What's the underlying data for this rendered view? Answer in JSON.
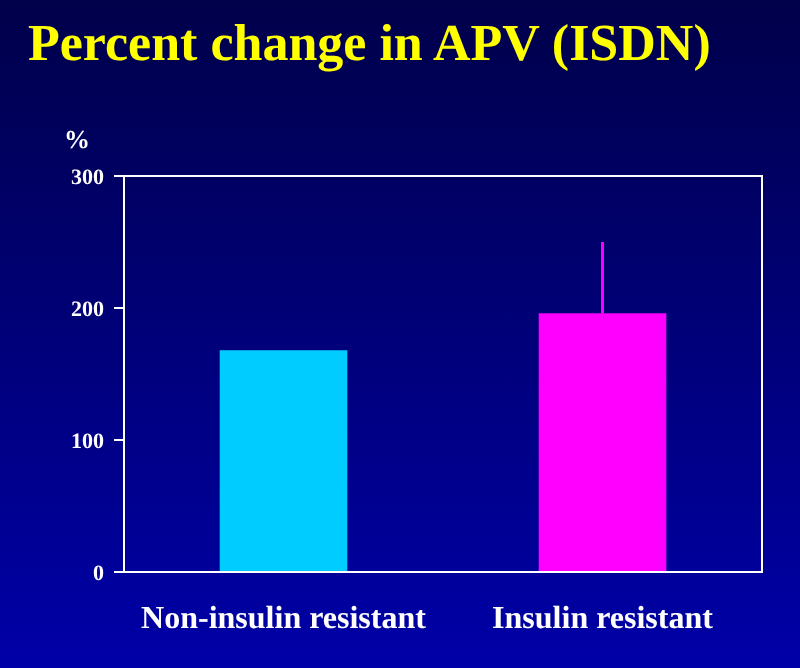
{
  "chart_data": {
    "type": "bar",
    "title": "Percent change in APV  (ISDN)",
    "ylabel": "%",
    "categories": [
      "Non-insulin resistant",
      "Insulin resistant"
    ],
    "values": [
      168,
      196
    ],
    "colors": [
      "#00ccff",
      "#ff00ff"
    ],
    "errors": [
      null,
      [
        196,
        250
      ]
    ],
    "ylim": [
      0,
      300
    ],
    "yticks": [
      0,
      100,
      200,
      300
    ],
    "grid": false
  }
}
